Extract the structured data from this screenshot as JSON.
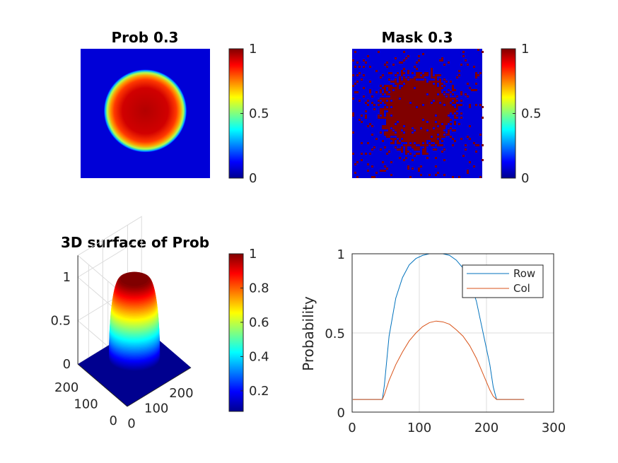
{
  "colors": {
    "jet": [
      "#00008f",
      "#0000ff",
      "#0080ff",
      "#00ffff",
      "#80ff80",
      "#ffff00",
      "#ff8000",
      "#ff0000",
      "#800000"
    ],
    "row_line": "#0072bd",
    "col_line": "#d95319",
    "axis": "#262626",
    "grid": "#dcdcdc"
  },
  "chart_data": [
    {
      "type": "heatmap",
      "title": "Prob 0.3",
      "description_values": {
        "background": 0.08,
        "peak": 1.0,
        "disk_center": [
          128,
          128
        ],
        "disk_radius_frac": 0.32
      },
      "colorbar": {
        "ticks": [
          "0",
          "0.5",
          "1"
        ],
        "clim": [
          0,
          1
        ]
      }
    },
    {
      "type": "heatmap",
      "title": "Mask 0.3",
      "description_values": {
        "background": 0.08,
        "inside": 1.0,
        "noise": "binary"
      },
      "colorbar": {
        "ticks": [
          "0",
          "0.5",
          "1"
        ],
        "clim": [
          0,
          1
        ]
      }
    },
    {
      "type": "surface",
      "title": "3D surface of Prob",
      "z_ticks": [
        "0",
        "0.5",
        "1"
      ],
      "y_ticks": [
        "200",
        "100",
        "0"
      ],
      "x_ticks": [
        "0",
        "100",
        "200"
      ],
      "colorbar": {
        "ticks": [
          "1",
          "0.8",
          "0.6",
          "0.4",
          "0.2"
        ],
        "clim": [
          0.08,
          1
        ]
      }
    },
    {
      "type": "line",
      "xlabel": "",
      "ylabel": "Probability",
      "xlim": [
        0,
        300
      ],
      "ylim": [
        0,
        1
      ],
      "x_ticks": [
        "0",
        "100",
        "200",
        "300"
      ],
      "y_ticks": [
        "0",
        "0.5",
        "1"
      ],
      "grid": true,
      "legend_position": "top-right",
      "series": [
        {
          "name": "Row",
          "x": [
            1,
            45,
            48,
            55,
            65,
            75,
            85,
            95,
            105,
            115,
            125,
            135,
            145,
            155,
            165,
            175,
            185,
            195,
            205,
            210,
            215,
            256
          ],
          "y": [
            0.08,
            0.08,
            0.17,
            0.48,
            0.72,
            0.85,
            0.93,
            0.97,
            0.99,
            1.0,
            1.0,
            1.0,
            0.99,
            0.96,
            0.91,
            0.83,
            0.7,
            0.5,
            0.3,
            0.16,
            0.08,
            0.08
          ]
        },
        {
          "name": "Col",
          "x": [
            1,
            45,
            48,
            55,
            65,
            75,
            85,
            95,
            105,
            115,
            125,
            135,
            145,
            155,
            165,
            175,
            185,
            195,
            205,
            210,
            215,
            256
          ],
          "y": [
            0.08,
            0.08,
            0.11,
            0.2,
            0.3,
            0.38,
            0.45,
            0.5,
            0.54,
            0.565,
            0.575,
            0.57,
            0.555,
            0.52,
            0.48,
            0.42,
            0.34,
            0.24,
            0.14,
            0.1,
            0.08,
            0.08
          ]
        }
      ]
    }
  ]
}
